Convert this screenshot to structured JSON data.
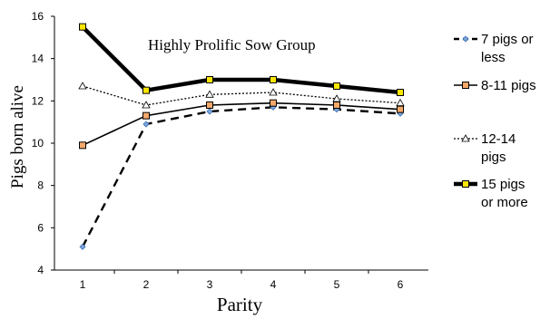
{
  "chart_data": {
    "type": "line",
    "title": "",
    "annotation": "Highly Prolific Sow Group",
    "xlabel": "Parity",
    "ylabel": "Pigs born alive",
    "x": [
      1,
      2,
      3,
      4,
      5,
      6
    ],
    "x_tick_labels": [
      "1",
      "2",
      "3",
      "4",
      "5",
      "6"
    ],
    "ylim": [
      4,
      16
    ],
    "y_ticks": [
      4,
      6,
      8,
      10,
      12,
      14,
      16
    ],
    "y_tick_labels": [
      "4",
      "6",
      "8",
      "10",
      "12",
      "14",
      "16"
    ],
    "grid": false,
    "legend_position": "right",
    "series": [
      {
        "key": "s1",
        "legend_lines": [
          "7 pigs or",
          "less"
        ],
        "values": [
          5.1,
          10.9,
          11.5,
          11.7,
          11.6,
          11.4
        ],
        "color": "#000000",
        "marker_fill": "#7fa7d9",
        "marker": "diamond",
        "style": "dashed"
      },
      {
        "key": "s2",
        "legend_lines": [
          "8-11 pigs"
        ],
        "values": [
          9.9,
          11.3,
          11.8,
          11.9,
          11.8,
          11.6
        ],
        "color": "#000000",
        "marker_fill": "#f4a96b",
        "marker": "square",
        "style": "solid"
      },
      {
        "key": "s3",
        "legend_lines": [
          "12-14",
          "pigs"
        ],
        "values": [
          12.7,
          11.8,
          12.3,
          12.4,
          12.1,
          11.9
        ],
        "color": "#000000",
        "marker_fill": "#ffffff",
        "marker": "triangle",
        "style": "dotted"
      },
      {
        "key": "s4",
        "legend_lines": [
          "15 pigs",
          "or more"
        ],
        "values": [
          15.5,
          12.5,
          13.0,
          13.0,
          12.7,
          12.4
        ],
        "color": "#000000",
        "marker_fill": "#ffe600",
        "marker": "square",
        "style": "thick"
      }
    ]
  }
}
